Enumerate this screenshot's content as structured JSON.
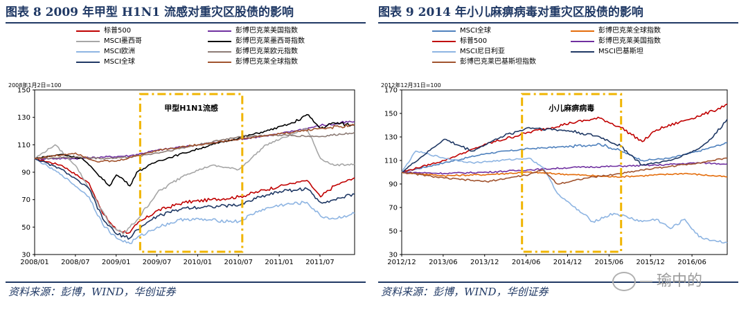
{
  "left": {
    "title": "图表 8   2009 年甲型 H1N1 流感对重灾区股债的影响",
    "source": "资料来源：彭博，WIND，华创证券",
    "base_label": "2008年1月2日=100",
    "box_label": "甲型H1N1流感",
    "legend": [
      {
        "name": "标普500",
        "color": "#c00000"
      },
      {
        "name": "彭博巴克莱美国指数",
        "color": "#7030a0"
      },
      {
        "name": "MSCI墨西哥",
        "color": "#a6a6a6"
      },
      {
        "name": "彭博巴克莱墨西哥指数",
        "color": "#000000"
      },
      {
        "name": "MSCI欧洲",
        "color": "#8db4e2"
      },
      {
        "name": "彭博巴克莱欧元指数",
        "color": "#8c7b75"
      },
      {
        "name": "MSCI全球",
        "color": "#1f3864"
      },
      {
        "name": "彭博巴克莱全球指数",
        "color": "#a0522d"
      }
    ],
    "chart_data": {
      "type": "line",
      "ylim": [
        30,
        150
      ],
      "yticks": [
        "30",
        "50",
        "70",
        "90",
        "110",
        "130",
        "150"
      ],
      "xticks": [
        "2008/01",
        "2008/07",
        "2009/01",
        "2009/07",
        "2010/01",
        "2010/07",
        "2011/01",
        "2011/07"
      ],
      "x_range": [
        0,
        47
      ],
      "event_window": [
        15.5,
        30.5
      ],
      "series": [
        {
          "name": "标普500",
          "color": "#c00000",
          "x": [
            0,
            4,
            8,
            10,
            12,
            14,
            15,
            18,
            22,
            26,
            30,
            33,
            36,
            40,
            42,
            44,
            47
          ],
          "values": [
            100,
            95,
            82,
            60,
            48,
            46,
            52,
            62,
            68,
            70,
            72,
            76,
            80,
            84,
            72,
            80,
            86
          ]
        },
        {
          "name": "彭博巴克莱美国指数",
          "color": "#7030a0",
          "x": [
            0,
            6,
            10,
            14,
            18,
            24,
            30,
            36,
            42,
            47
          ],
          "values": [
            100,
            100,
            101,
            102,
            106,
            110,
            114,
            118,
            124,
            127
          ]
        },
        {
          "name": "MSCI墨西哥",
          "color": "#a6a6a6",
          "x": [
            0,
            3,
            6,
            9,
            11,
            13,
            15,
            18,
            22,
            26,
            30,
            34,
            38,
            40,
            42,
            44,
            47
          ],
          "values": [
            100,
            110,
            95,
            70,
            52,
            45,
            55,
            75,
            88,
            95,
            92,
            110,
            118,
            122,
            100,
            95,
            96
          ]
        },
        {
          "name": "彭博巴克莱墨西哥指数",
          "color": "#000000",
          "x": [
            0,
            4,
            7,
            9,
            11,
            12,
            13,
            14,
            15,
            18,
            22,
            26,
            30,
            34,
            38,
            40,
            42,
            44,
            47
          ],
          "values": [
            100,
            103,
            100,
            90,
            80,
            88,
            85,
            80,
            90,
            98,
            104,
            110,
            115,
            120,
            126,
            132,
            122,
            126,
            124
          ]
        },
        {
          "name": "MSCI欧洲",
          "color": "#8db4e2",
          "x": [
            0,
            4,
            8,
            10,
            12,
            14,
            15,
            18,
            22,
            26,
            30,
            33,
            36,
            40,
            42,
            44,
            47
          ],
          "values": [
            100,
            88,
            72,
            52,
            42,
            38,
            42,
            50,
            56,
            55,
            54,
            62,
            66,
            68,
            58,
            56,
            60
          ]
        },
        {
          "name": "彭博巴克莱欧元指数",
          "color": "#8c7b75",
          "x": [
            0,
            6,
            10,
            14,
            18,
            24,
            30,
            36,
            42,
            47
          ],
          "values": [
            100,
            101,
            100,
            101,
            104,
            110,
            116,
            117,
            116,
            119
          ]
        },
        {
          "name": "MSCI全球",
          "color": "#1f3864",
          "x": [
            0,
            4,
            8,
            10,
            12,
            14,
            15,
            18,
            22,
            26,
            30,
            33,
            36,
            40,
            42,
            44,
            47
          ],
          "values": [
            100,
            92,
            78,
            56,
            45,
            42,
            48,
            58,
            64,
            65,
            66,
            72,
            76,
            78,
            68,
            70,
            74
          ]
        },
        {
          "name": "彭博巴克莱全球指数",
          "color": "#a0522d",
          "x": [
            0,
            6,
            9,
            12,
            15,
            18,
            24,
            30,
            36,
            42,
            47
          ],
          "values": [
            100,
            104,
            98,
            98,
            102,
            106,
            110,
            114,
            118,
            122,
            124
          ]
        }
      ]
    }
  },
  "right": {
    "title": "图表 9   2014 年小儿麻痹病毒对重灾区股债的影响",
    "source": "资料来源：彭博，WIND，华创证券",
    "base_label": "2012年12月31日=100",
    "box_label": "小儿麻痹病毒",
    "legend": [
      {
        "name": "MSCI全球",
        "color": "#4f81bd"
      },
      {
        "name": "彭博巴克莱全球指数",
        "color": "#e46c0a"
      },
      {
        "name": "标普500",
        "color": "#c00000"
      },
      {
        "name": "彭博巴克莱美国指数",
        "color": "#7030a0"
      },
      {
        "name": "MSCI尼日利亚",
        "color": "#8db4e2"
      },
      {
        "name": "MSCI巴基斯坦",
        "color": "#1f3864"
      },
      {
        "name": "彭博巴克莱巴基斯坦指数",
        "color": "#a0522d"
      }
    ],
    "chart_data": {
      "type": "line",
      "ylim": [
        30,
        170
      ],
      "yticks": [
        "30",
        "50",
        "70",
        "90",
        "110",
        "130",
        "150",
        "170"
      ],
      "xticks": [
        "2012/12",
        "2013/06",
        "2013/12",
        "2014/06",
        "2014/12",
        "2015/06",
        "2015/12",
        "2016/06"
      ],
      "x_range": [
        0,
        46
      ],
      "event_window": [
        17,
        31
      ],
      "series": [
        {
          "name": "MSCI全球",
          "color": "#4f81bd",
          "x": [
            0,
            6,
            12,
            18,
            24,
            28,
            31,
            34,
            38,
            42,
            46
          ],
          "values": [
            100,
            108,
            116,
            120,
            122,
            124,
            118,
            110,
            112,
            118,
            125
          ]
        },
        {
          "name": "彭博巴克莱全球指数",
          "color": "#e46c0a",
          "x": [
            0,
            6,
            12,
            18,
            24,
            30,
            34,
            40,
            46
          ],
          "values": [
            100,
            97,
            98,
            100,
            98,
            96,
            97,
            99,
            96
          ]
        },
        {
          "name": "标普500",
          "color": "#c00000",
          "x": [
            0,
            6,
            12,
            18,
            24,
            28,
            31,
            34,
            36,
            40,
            44,
            46
          ],
          "values": [
            100,
            110,
            124,
            134,
            142,
            146,
            138,
            126,
            136,
            144,
            152,
            158
          ]
        },
        {
          "name": "彭博巴克莱美国指数",
          "color": "#7030a0",
          "x": [
            0,
            6,
            12,
            18,
            24,
            30,
            36,
            42,
            46
          ],
          "values": [
            100,
            99,
            100,
            102,
            104,
            105,
            106,
            108,
            107
          ]
        },
        {
          "name": "MSCI尼日利亚",
          "color": "#8db4e2",
          "x": [
            0,
            2,
            6,
            10,
            14,
            18,
            20,
            22,
            24,
            27,
            30,
            34,
            36,
            38,
            40,
            42,
            44,
            46
          ],
          "values": [
            100,
            118,
            112,
            108,
            110,
            112,
            104,
            82,
            72,
            58,
            65,
            58,
            60,
            52,
            60,
            45,
            42,
            40
          ]
        },
        {
          "name": "MSCI巴基斯坦",
          "color": "#1f3864",
          "x": [
            0,
            6,
            10,
            14,
            18,
            24,
            28,
            31,
            34,
            38,
            42,
            44,
            46
          ],
          "values": [
            100,
            128,
            118,
            130,
            138,
            135,
            130,
            122,
            106,
            110,
            120,
            130,
            145
          ]
        },
        {
          "name": "彭博巴克莱巴基斯坦指数",
          "color": "#a0522d",
          "x": [
            0,
            6,
            12,
            18,
            20,
            22,
            26,
            30,
            34,
            38,
            42,
            46
          ],
          "values": [
            100,
            95,
            92,
            98,
            102,
            90,
            95,
            98,
            102,
            105,
            108,
            112
          ]
        }
      ]
    }
  },
  "watermark": "瑜中的"
}
